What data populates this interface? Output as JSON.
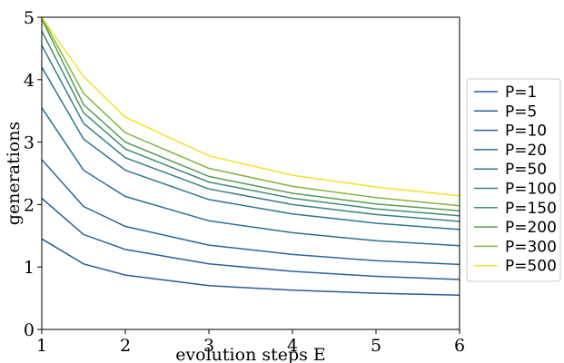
{
  "chart_data": {
    "type": "line",
    "xlabel": "evolution steps E",
    "ylabel": "generations",
    "xlim": [
      1,
      6
    ],
    "ylim": [
      0,
      5
    ],
    "xticks": [
      1,
      2,
      3,
      4,
      5,
      6
    ],
    "yticks": [
      0,
      1,
      2,
      3,
      4,
      5
    ],
    "legend_position": "right",
    "grid": false,
    "x": [
      1,
      1.5,
      2,
      3,
      4,
      5,
      6
    ],
    "series": [
      {
        "name": "P=1",
        "color": "#2a5d9a",
        "values": [
          1.45,
          1.05,
          0.87,
          0.7,
          0.63,
          0.58,
          0.55
        ]
      },
      {
        "name": "P=5",
        "color": "#2b619a",
        "values": [
          2.1,
          1.52,
          1.28,
          1.05,
          0.93,
          0.85,
          0.8
        ]
      },
      {
        "name": "P=10",
        "color": "#2c6598",
        "values": [
          2.72,
          1.97,
          1.65,
          1.35,
          1.2,
          1.1,
          1.04
        ]
      },
      {
        "name": "P=20",
        "color": "#2f6d95",
        "values": [
          3.55,
          2.55,
          2.13,
          1.74,
          1.55,
          1.42,
          1.34
        ]
      },
      {
        "name": "P=50",
        "color": "#307490",
        "values": [
          4.2,
          3.05,
          2.55,
          2.08,
          1.85,
          1.7,
          1.6
        ]
      },
      {
        "name": "P=100",
        "color": "#377f84",
        "values": [
          4.55,
          3.3,
          2.75,
          2.25,
          2.0,
          1.84,
          1.73
        ]
      },
      {
        "name": "P=150",
        "color": "#428c72",
        "values": [
          4.78,
          3.47,
          2.89,
          2.36,
          2.1,
          1.93,
          1.82
        ]
      },
      {
        "name": "P=200",
        "color": "#559b55",
        "values": [
          4.97,
          3.6,
          3.0,
          2.45,
          2.18,
          2.01,
          1.9
        ]
      },
      {
        "name": "P=300",
        "color": "#83b43f",
        "values": [
          5.0,
          3.78,
          3.15,
          2.58,
          2.29,
          2.11,
          1.98
        ]
      },
      {
        "name": "P=500",
        "color": "#f0e32a",
        "values": [
          5.0,
          4.05,
          3.4,
          2.78,
          2.47,
          2.28,
          2.14
        ]
      }
    ]
  }
}
